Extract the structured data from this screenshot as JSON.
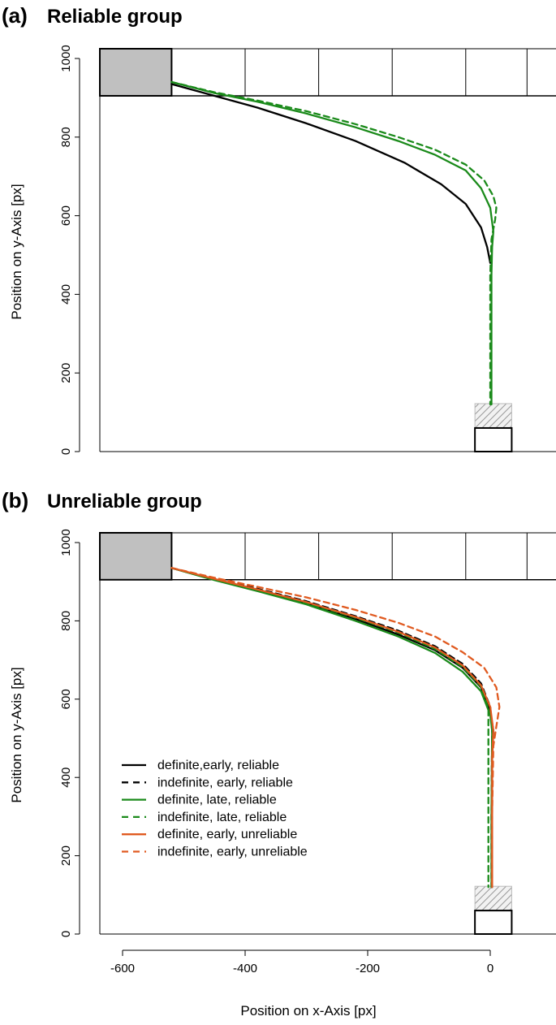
{
  "chart_data": [
    {
      "type": "line",
      "panel_label": "(a)",
      "title": "Reliable group",
      "xlabel": "",
      "ylabel": "Position on y-Axis [px]",
      "xlim": [
        -650,
        100
      ],
      "ylim": [
        0,
        1000
      ],
      "yticks": [
        0,
        200,
        400,
        600,
        800,
        1000
      ],
      "xticks": [],
      "grid": false,
      "colors": {
        "black": "#000000",
        "green": "#1a8a1a",
        "orange": "#e05a20"
      },
      "start_box": {
        "x0": -635,
        "x1": -520,
        "y0": 905,
        "y1": 1025
      },
      "top_band": {
        "y0": 905,
        "y1": 1025,
        "x0": -635,
        "x1": 60,
        "dividers": [
          -520,
          -400,
          -280,
          -160,
          -40,
          60
        ]
      },
      "target_box": {
        "x0": -25,
        "x1": 35,
        "y0": 0,
        "y1": 60
      },
      "hatched_box": {
        "x0": -25,
        "x1": 35,
        "y0": 60,
        "y1": 122
      },
      "series": [
        {
          "color": "black",
          "dash": "solid",
          "points": [
            [
              -520,
              935
            ],
            [
              -450,
              905
            ],
            [
              -380,
              875
            ],
            [
              -300,
              835
            ],
            [
              -220,
              790
            ],
            [
              -140,
              735
            ],
            [
              -80,
              680
            ],
            [
              -40,
              630
            ],
            [
              -15,
              570
            ],
            [
              -5,
              520
            ],
            [
              0,
              480
            ]
          ]
        },
        {
          "color": "green",
          "dash": "solid",
          "points": [
            [
              -520,
              940
            ],
            [
              -450,
              912
            ],
            [
              -380,
              890
            ],
            [
              -300,
              860
            ],
            [
              -220,
              825
            ],
            [
              -150,
              790
            ],
            [
              -90,
              755
            ],
            [
              -40,
              715
            ],
            [
              -15,
              670
            ],
            [
              0,
              620
            ],
            [
              5,
              560
            ],
            [
              3,
              520
            ],
            [
              2,
              450
            ],
            [
              2,
              300
            ],
            [
              2,
              120
            ]
          ]
        },
        {
          "color": "green",
          "dash": "dashed",
          "points": [
            [
              -520,
              940
            ],
            [
              -450,
              914
            ],
            [
              -380,
              893
            ],
            [
              -300,
              866
            ],
            [
              -220,
              833
            ],
            [
              -150,
              800
            ],
            [
              -90,
              768
            ],
            [
              -40,
              730
            ],
            [
              -10,
              690
            ],
            [
              5,
              650
            ],
            [
              10,
              620
            ],
            [
              8,
              590
            ],
            [
              2,
              540
            ],
            [
              0,
              450
            ],
            [
              0,
              120
            ]
          ]
        }
      ]
    },
    {
      "type": "line",
      "panel_label": "(b)",
      "title": "Unreliable group",
      "xlabel": "Position on x-Axis [px]",
      "ylabel": "Position on y-Axis [px]",
      "xlim": [
        -650,
        100
      ],
      "ylim": [
        0,
        1000
      ],
      "yticks": [
        0,
        200,
        400,
        600,
        800,
        1000
      ],
      "xticks": [
        -600,
        -400,
        -200,
        0
      ],
      "grid": false,
      "colors": {
        "black": "#000000",
        "green": "#1a8a1a",
        "orange": "#e05a20"
      },
      "start_box": {
        "x0": -635,
        "x1": -520,
        "y0": 905,
        "y1": 1025
      },
      "top_band": {
        "y0": 905,
        "y1": 1025,
        "x0": -635,
        "x1": 60,
        "dividers": [
          -520,
          -400,
          -280,
          -160,
          -40,
          60
        ]
      },
      "target_box": {
        "x0": -25,
        "x1": 35,
        "y0": 0,
        "y1": 60
      },
      "hatched_box": {
        "x0": -25,
        "x1": 35,
        "y0": 60,
        "y1": 122
      },
      "legend_position": "bottom-left",
      "series": [
        {
          "name": "definite,early, reliable",
          "color": "black",
          "dash": "solid",
          "points": [
            [
              -520,
              935
            ],
            [
              -450,
              905
            ],
            [
              -380,
              878
            ],
            [
              -300,
              845
            ],
            [
              -220,
              805
            ],
            [
              -150,
              765
            ],
            [
              -90,
              725
            ],
            [
              -45,
              680
            ],
            [
              -15,
              630
            ],
            [
              0,
              570
            ],
            [
              5,
              520
            ],
            [
              3,
              450
            ],
            [
              3,
              300
            ],
            [
              3,
              120
            ]
          ]
        },
        {
          "name": "indefinite, early, reliable",
          "color": "black",
          "dash": "dashed",
          "points": [
            [
              -520,
              935
            ],
            [
              -450,
              908
            ],
            [
              -380,
              882
            ],
            [
              -300,
              850
            ],
            [
              -220,
              812
            ],
            [
              -150,
              775
            ],
            [
              -90,
              735
            ],
            [
              -45,
              690
            ],
            [
              -15,
              640
            ],
            [
              0,
              580
            ],
            [
              3,
              520
            ],
            [
              2,
              300
            ],
            [
              2,
              120
            ]
          ]
        },
        {
          "name": "definite, late, reliable",
          "color": "green",
          "dash": "solid",
          "points": [
            [
              -520,
              935
            ],
            [
              -450,
              904
            ],
            [
              -380,
              876
            ],
            [
              -300,
              842
            ],
            [
              -220,
              800
            ],
            [
              -150,
              760
            ],
            [
              -90,
              718
            ],
            [
              -45,
              670
            ],
            [
              -15,
              620
            ],
            [
              0,
              560
            ],
            [
              3,
              520
            ],
            [
              2,
              300
            ],
            [
              2,
              120
            ]
          ]
        },
        {
          "name": "indefinite, late, reliable",
          "color": "green",
          "dash": "dashed",
          "points": [
            [
              -520,
              935
            ],
            [
              -450,
              906
            ],
            [
              -380,
              880
            ],
            [
              -300,
              846
            ],
            [
              -220,
              808
            ],
            [
              -150,
              770
            ],
            [
              -90,
              728
            ],
            [
              -45,
              682
            ],
            [
              -15,
              632
            ],
            [
              -3,
              575
            ],
            [
              -3,
              520
            ],
            [
              -3,
              300
            ],
            [
              -3,
              120
            ]
          ]
        },
        {
          "name": "definite, early, unreliable",
          "color": "orange",
          "dash": "solid",
          "points": [
            [
              -520,
              935
            ],
            [
              -450,
              907
            ],
            [
              -380,
              880
            ],
            [
              -300,
              848
            ],
            [
              -220,
              810
            ],
            [
              -150,
              772
            ],
            [
              -90,
              732
            ],
            [
              -45,
              686
            ],
            [
              -15,
              635
            ],
            [
              0,
              580
            ],
            [
              5,
              520
            ],
            [
              3,
              450
            ],
            [
              3,
              300
            ],
            [
              3,
              120
            ]
          ]
        },
        {
          "name": "indefinite, early, unreliable",
          "color": "orange",
          "dash": "dashed",
          "points": [
            [
              -520,
              935
            ],
            [
              -450,
              910
            ],
            [
              -380,
              887
            ],
            [
              -300,
              860
            ],
            [
              -220,
              828
            ],
            [
              -150,
              795
            ],
            [
              -90,
              760
            ],
            [
              -45,
              720
            ],
            [
              -10,
              680
            ],
            [
              10,
              630
            ],
            [
              15,
              580
            ],
            [
              10,
              530
            ],
            [
              5,
              480
            ],
            [
              3,
              300
            ],
            [
              3,
              120
            ]
          ]
        }
      ]
    }
  ]
}
